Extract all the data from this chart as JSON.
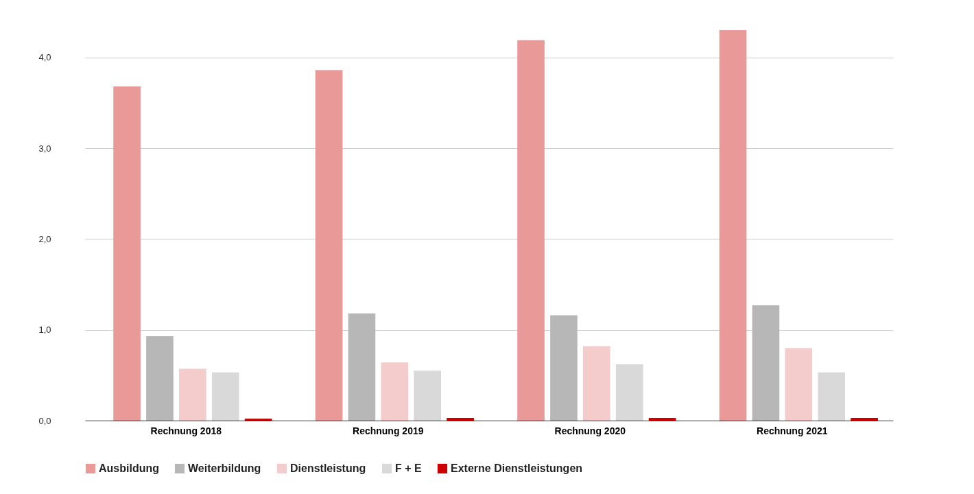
{
  "chart_data": {
    "type": "bar",
    "categories": [
      "Rechnung 2018",
      "Rechnung 2019",
      "Rechnung 2020",
      "Rechnung 2021"
    ],
    "series": [
      {
        "name": "Ausbildung",
        "color": "#ea9999",
        "values": [
          3.68,
          3.86,
          4.19,
          4.3
        ]
      },
      {
        "name": "Weiterbildung",
        "color": "#b7b7b7",
        "values": [
          0.93,
          1.18,
          1.16,
          1.27
        ]
      },
      {
        "name": "Dienstleistung",
        "color": "#f4cccc",
        "values": [
          0.57,
          0.64,
          0.82,
          0.8
        ]
      },
      {
        "name": "F + E",
        "color": "#d9d9d9",
        "values": [
          0.53,
          0.55,
          0.62,
          0.53
        ]
      },
      {
        "name": "Externe Dienstleistungen",
        "color": "#cc0000",
        "values": [
          0.02,
          0.03,
          0.03,
          0.03
        ]
      }
    ],
    "yticks": [
      {
        "value": 0,
        "label": "0,0"
      },
      {
        "value": 1,
        "label": "1,0"
      },
      {
        "value": 2,
        "label": "2,0"
      },
      {
        "value": 3,
        "label": "3,0"
      },
      {
        "value": 4,
        "label": "4,0"
      }
    ],
    "ylim": [
      0,
      4.3
    ],
    "grid": "y",
    "legend": "bottom"
  }
}
